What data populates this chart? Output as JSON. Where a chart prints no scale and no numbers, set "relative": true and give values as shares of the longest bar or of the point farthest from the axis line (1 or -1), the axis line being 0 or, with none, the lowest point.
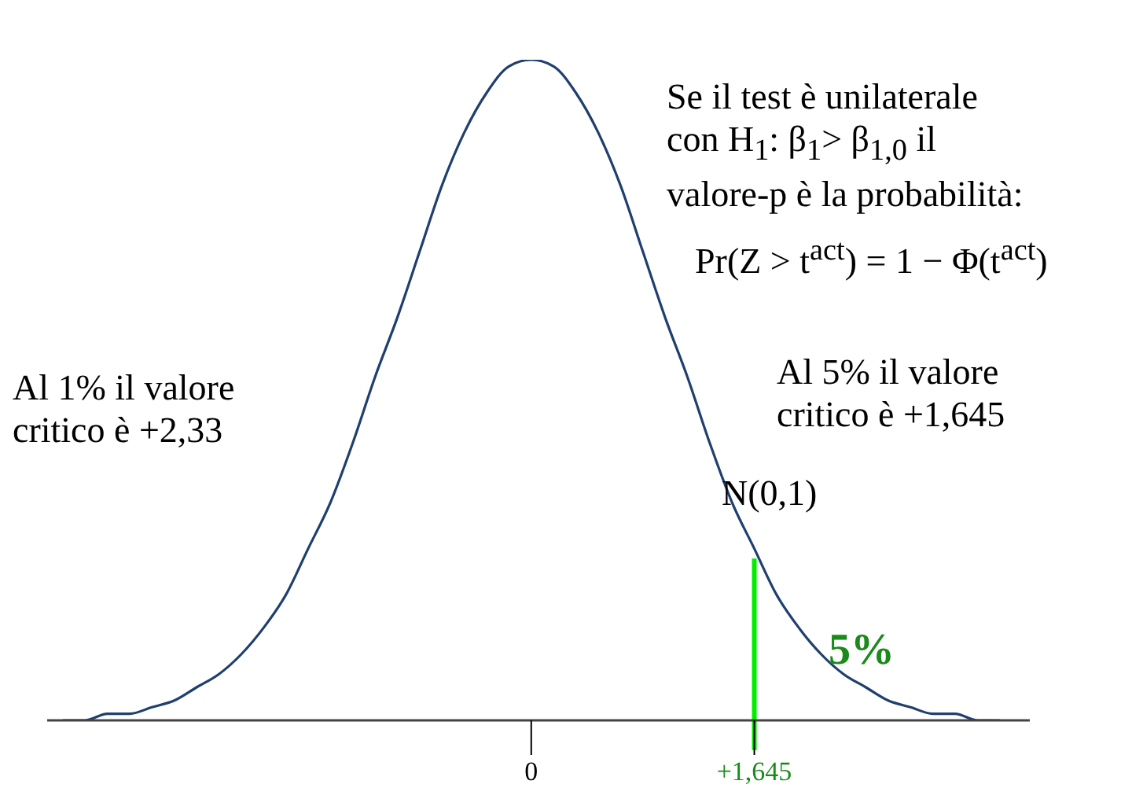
{
  "chart_data": {
    "type": "line",
    "relative": true,
    "marker": "none",
    "line_style": "solid",
    "categories": [
      null,
      null,
      null,
      null,
      null,
      null,
      null,
      null,
      null,
      null,
      null,
      null,
      null,
      null,
      null,
      null,
      null,
      null,
      null,
      null,
      null,
      "0",
      null,
      null,
      null,
      null,
      null,
      null,
      null,
      null,
      null,
      "+1,645",
      null,
      null,
      null,
      null,
      null,
      null,
      null,
      null,
      null,
      null,
      null
    ],
    "series": [
      {
        "color": "#1f3f6e",
        "values": [
          0,
          0,
          0.01,
          0.01,
          0.02,
          0.03,
          0.05,
          0.07,
          0.1,
          0.14,
          0.19,
          0.26,
          0.33,
          0.42,
          0.52,
          0.61,
          0.71,
          0.81,
          0.89,
          0.95,
          0.99,
          1,
          0.99,
          0.95,
          0.89,
          0.81,
          0.71,
          0.61,
          0.52,
          0.42,
          0.33,
          0.26,
          0.19,
          0.14,
          0.1,
          0.07,
          0.05,
          0.03,
          0.02,
          0.01,
          0.01,
          0,
          0
        ]
      }
    ],
    "ref_lines": [
      {
        "axis": "x",
        "value": "+1,645",
        "color": "#00ee00"
      }
    ],
    "annotations": [
      "Se il test è unilaterale\ncon H$_{1}$: β$_{1}$> β$_{1,0}$ il\nvalore-p è la probabilità:",
      "Pr(Z > t$^{act}$) = 1 − Φ(t$^{act}$)",
      "Al 1% il valore\ncritico è +2,33",
      "Al 5% il valore\ncritico è +1,645",
      "N(0,1)",
      "5%"
    ]
  }
}
